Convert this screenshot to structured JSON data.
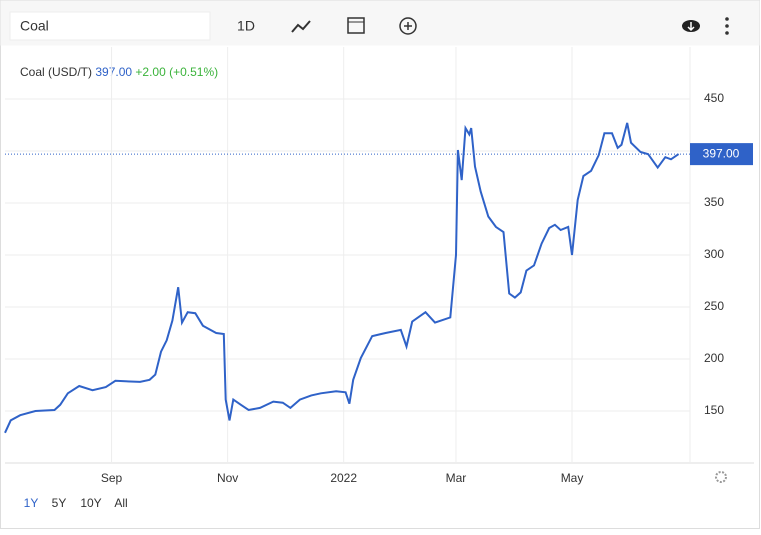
{
  "search": "Coal",
  "interval": "1D",
  "ranges": [
    "1Y",
    "5Y",
    "10Y",
    "All"
  ],
  "chart_data": {
    "type": "line",
    "title": "Coal (USD/T)",
    "price": {
      "value": 397,
      "label": "397.00"
    },
    "change": "+2.00 (+0.51%)",
    "color": "#2f62c8",
    "x": [
      0,
      3,
      8,
      16,
      26,
      29,
      33,
      39,
      46,
      53,
      58,
      71,
      76,
      79,
      82,
      85,
      88,
      91,
      93,
      96,
      100,
      104,
      111,
      115,
      116,
      118,
      120,
      124,
      128,
      134,
      141,
      146,
      150,
      155,
      161,
      166,
      174,
      179,
      181,
      183,
      187,
      193,
      200,
      208,
      211,
      214,
      221,
      226,
      234,
      237,
      238,
      240,
      242,
      244,
      245,
      247,
      250,
      254,
      258,
      262,
      265,
      268,
      271,
      274,
      278,
      282,
      286,
      289,
      292,
      296,
      298,
      301,
      304,
      308,
      312,
      315,
      319,
      322,
      324,
      327,
      329,
      334,
      338,
      343,
      347,
      350,
      354
    ],
    "values": [
      129,
      141,
      146,
      150,
      151,
      156,
      167,
      174,
      170,
      173,
      179,
      178,
      180,
      185,
      207,
      218,
      237,
      269,
      235,
      245,
      244,
      232,
      225,
      224,
      161,
      141,
      161,
      156,
      151,
      153,
      159,
      158,
      153,
      161,
      165,
      167,
      169,
      168,
      157,
      180,
      201,
      222,
      225,
      228,
      212,
      236,
      245,
      235,
      240,
      300,
      401,
      372,
      422,
      416,
      422,
      385,
      361,
      337,
      327,
      322,
      263,
      259,
      264,
      285,
      290,
      311,
      326,
      329,
      324,
      327,
      300,
      353,
      376,
      381,
      396,
      417,
      417,
      403,
      406,
      427,
      408,
      399,
      397,
      384,
      394,
      392,
      397
    ],
    "xlim": [
      0,
      360
    ],
    "xticks": [
      {
        "value": 56,
        "label": "Sep"
      },
      {
        "value": 117,
        "label": "Nov"
      },
      {
        "value": 178,
        "label": "2022"
      },
      {
        "value": 237,
        "label": "Mar"
      },
      {
        "value": 298,
        "label": "May"
      }
    ],
    "ylim": [
      100,
      500
    ],
    "yticks": [
      150,
      200,
      250,
      300,
      350,
      400,
      450
    ],
    "grid": true
  }
}
